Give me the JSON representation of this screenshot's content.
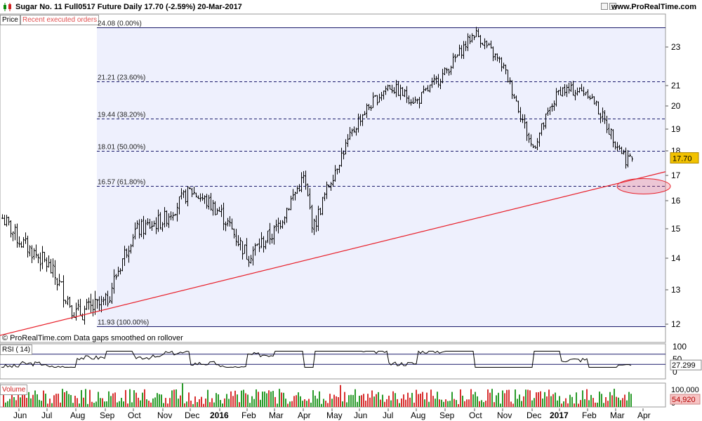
{
  "header": {
    "title": "Sugar No. 11 Full0517 Future   Daily   17.70 (-2.59%)   20-Mar-2017",
    "site": "www.ProRealTime.com"
  },
  "tabs": {
    "price": "Price",
    "orders": "Recent executed orders"
  },
  "footer_note": "© ProRealTime.com  Data gaps smoothed on rollover",
  "colors": {
    "panel_bg": "#eef0fd",
    "trend": "#e8202a",
    "price_badge": "#f2c200",
    "volume_badge": "#f7c4c4",
    "rsi_line": "#000000",
    "volume_up": "#2a9b2a",
    "volume_down": "#d83030"
  },
  "chart_data": [
    {
      "type": "ohlc",
      "title": "Sugar No. 11 Full0517 Future",
      "period": "Daily",
      "last_value": "17.70",
      "ylim": [
        11.6,
        24.4
      ],
      "y_ticks": [
        "12",
        "13",
        "14",
        "15",
        "16",
        "17",
        "18",
        "19",
        "20",
        "21",
        "23"
      ],
      "x_ticks": [
        "Jun",
        "Jul",
        "Aug",
        "Sep",
        "Oct",
        "Nov",
        "Dec",
        "2016",
        "Feb",
        "Mar",
        "Apr",
        "May",
        "Jun",
        "Jul",
        "Aug",
        "Sep",
        "Oct",
        "Nov",
        "Dec",
        "2017",
        "Feb",
        "Mar",
        "Apr"
      ],
      "fibonacci_levels": [
        {
          "label": "24.08 (0.00%)",
          "value": 24.08
        },
        {
          "label": "21.21 (23.60%)",
          "value": 21.21
        },
        {
          "label": "19.44 (38.20%)",
          "value": 19.44
        },
        {
          "label": "18.01 (50.00%)",
          "value": 18.01
        },
        {
          "label": "16.57 (61.80%)",
          "value": 16.57
        },
        {
          "label": "11.93 (100.00%)",
          "value": 11.93
        }
      ],
      "trendline": {
        "start": {
          "x": "May 2015",
          "y": 11.6
        },
        "end": {
          "x": "Apr 2017",
          "y": 17.15
        }
      },
      "highlight": {
        "x": "Mar 2017",
        "y": 16.57
      },
      "price_path": [
        [
          "May 2015",
          15.9
        ],
        [
          "Jun 2015",
          14.6
        ],
        [
          "Jul 2015",
          13.8
        ],
        [
          "Aug 2015",
          12.3
        ],
        [
          "Sep 2015",
          12.6
        ],
        [
          "Oct 2015",
          14.9
        ],
        [
          "Nov 2015",
          15.3
        ],
        [
          "Dec 2015",
          16.4
        ],
        [
          "Jan 2016",
          15.6
        ],
        [
          "Feb 2016",
          14.1
        ],
        [
          "Mar 2016",
          14.9
        ],
        [
          "Apr 2016",
          16.9
        ],
        [
          "Apr 2016",
          15.0
        ],
        [
          "May 2016",
          17.0
        ],
        [
          "Jun 2016",
          19.5
        ],
        [
          "Jul 2016",
          21.0
        ],
        [
          "Aug 2016",
          20.2
        ],
        [
          "Sep 2016",
          21.7
        ],
        [
          "Oct 2016",
          23.8
        ],
        [
          "Nov 2016",
          22.0
        ],
        [
          "Dec 2016",
          18.1
        ],
        [
          "Jan 2017",
          20.8
        ],
        [
          "Feb 2017",
          20.7
        ],
        [
          "Mar 2017",
          18.4
        ],
        [
          "Mar 2017",
          17.7
        ]
      ]
    },
    {
      "type": "line",
      "title": "RSI ( 14)",
      "ylim": [
        0,
        100
      ],
      "y_ticks": [
        "100",
        "50",
        "0"
      ],
      "last_value": "27.299"
    },
    {
      "type": "bar",
      "title": "Volume",
      "y_ticks": [
        "100,000",
        "0"
      ],
      "last_value": "54,920"
    }
  ]
}
